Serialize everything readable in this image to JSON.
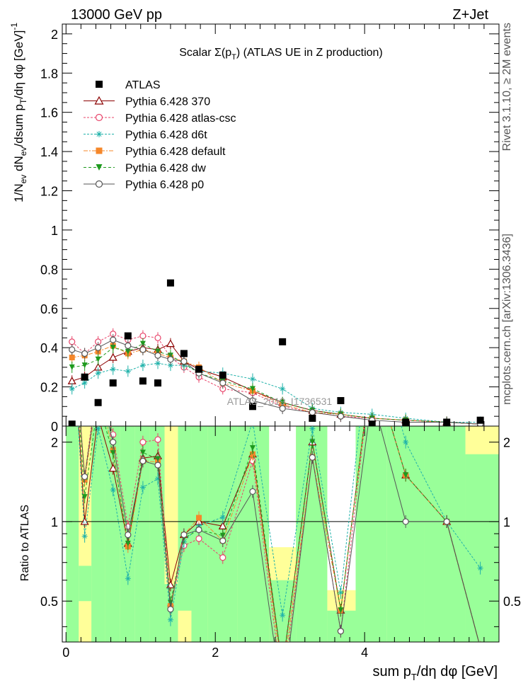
{
  "header": {
    "left": "13000 GeV pp",
    "right": "Z+Jet"
  },
  "side": {
    "rivet": "Rivet 3.1.10, ≥ 2M events",
    "mcplots": "mcplots.cern.ch [arXiv:1306.3436]"
  },
  "chart_data": {
    "type": "scatter",
    "title": "Scalar Σ(p_T) (ATLAS UE in Z production)",
    "xlabel": "sum p_T/dη dφ [GeV]",
    "ylabel": "1/N_ev dN_ev/dsum p_T/dη dφ [GeV]^-1",
    "ratio_ylabel": "Ratio to ATLAS",
    "watermark": "ATLAS_2019_I1736531",
    "xlim": [
      -0.05,
      5.8
    ],
    "ylim": [
      0,
      2.05
    ],
    "ratio_ylim": [
      0.35,
      2.3
    ],
    "x_ticks": [
      "0",
      "2",
      "4"
    ],
    "y_ticks": [
      "0",
      "0.2",
      "0.4",
      "0.6",
      "0.8",
      "1",
      "1.2",
      "1.4",
      "1.6",
      "1.8",
      "2"
    ],
    "ratio_ticks": [
      "0.5",
      "1",
      "2"
    ],
    "legend_position": "top-left",
    "x": [
      0.08,
      0.25,
      0.43,
      0.63,
      0.83,
      1.03,
      1.23,
      1.4,
      1.58,
      1.78,
      2.1,
      2.5,
      2.9,
      3.3,
      3.68,
      4.1,
      4.55,
      5.1,
      5.55
    ],
    "series": [
      {
        "name": "ATLAS",
        "color": "#000000",
        "marker": "filled-square",
        "values": [
          0.01,
          0.25,
          0.12,
          0.22,
          0.46,
          0.23,
          0.22,
          0.73,
          0.37,
          0.29,
          0.26,
          0.1,
          0.43,
          0.04,
          0.13,
          0.01,
          0.02,
          0.02,
          0.03
        ]
      },
      {
        "name": "Pythia 6.428 370",
        "color": "#8b0000",
        "marker": "open-triangle",
        "dash": "",
        "values": [
          0.23,
          0.25,
          0.3,
          0.35,
          0.38,
          0.4,
          0.39,
          0.42,
          0.33,
          0.29,
          0.25,
          0.18,
          0.12,
          0.08,
          0.06,
          0.04,
          0.03,
          0.02,
          0.01
        ]
      },
      {
        "name": "Pythia 6.428 atlas-csc",
        "color": "#e8446a",
        "marker": "open-circle",
        "dash": "3,2",
        "values": [
          0.43,
          0.37,
          0.43,
          0.47,
          0.44,
          0.46,
          0.45,
          0.35,
          0.3,
          0.25,
          0.19,
          0.17,
          0.1,
          0.07,
          0.05,
          0.04,
          0.03,
          0.02,
          0.01
        ]
      },
      {
        "name": "Pythia 6.428 d6t",
        "color": "#20b2aa",
        "marker": "star",
        "dash": "3,2",
        "values": [
          0.19,
          0.22,
          0.27,
          0.29,
          0.28,
          0.31,
          0.32,
          0.31,
          0.31,
          0.28,
          0.27,
          0.24,
          0.19,
          0.09,
          0.07,
          0.06,
          0.04,
          0.02,
          0.02
        ]
      },
      {
        "name": "Pythia 6.428 default",
        "color": "#f5872a",
        "marker": "filled-square",
        "dash": "6,2,2,2",
        "values": [
          0.35,
          0.36,
          0.38,
          0.41,
          0.37,
          0.39,
          0.37,
          0.35,
          0.33,
          0.3,
          0.22,
          0.18,
          0.11,
          0.07,
          0.06,
          0.04,
          0.03,
          0.02,
          0.01
        ]
      },
      {
        "name": "Pythia 6.428 dw",
        "color": "#1e9a1e",
        "marker": "filled-triangle-down",
        "dash": "4,3",
        "values": [
          0.3,
          0.31,
          0.34,
          0.4,
          0.38,
          0.42,
          0.38,
          0.36,
          0.32,
          0.27,
          0.23,
          0.19,
          0.12,
          0.08,
          0.06,
          0.04,
          0.03,
          0.02,
          0.01
        ]
      },
      {
        "name": "Pythia 6.428 p0",
        "color": "#555555",
        "marker": "open-circle",
        "dash": "",
        "values": [
          0.39,
          0.37,
          0.4,
          0.44,
          0.41,
          0.39,
          0.36,
          0.34,
          0.33,
          0.27,
          0.22,
          0.13,
          0.09,
          0.07,
          0.05,
          0.03,
          0.02,
          0.02,
          0.01
        ]
      }
    ],
    "ratio_band_edges": [
      0.0,
      0.17,
      0.34,
      0.52,
      0.72,
      0.92,
      1.12,
      1.32,
      1.5,
      1.68,
      1.9,
      2.3,
      2.72,
      3.08,
      3.5,
      3.88,
      4.3,
      4.8,
      5.35,
      5.8
    ],
    "ratio_bands": {
      "green": [
        [
          0.35,
          2.3
        ],
        [
          0.5,
          0.68
        ],
        [
          0.35,
          2.3
        ],
        [
          0.35,
          2.3
        ],
        [
          0.35,
          2.3
        ],
        [
          0.35,
          2.3
        ],
        [
          0.35,
          2.3
        ],
        [
          0.35,
          0.58
        ],
        [
          0.46,
          2.3
        ],
        [
          0.35,
          2.3
        ],
        [
          0.35,
          2.3
        ],
        [
          0.35,
          2.3
        ],
        [
          0.35,
          0.6
        ],
        [
          0.35,
          2.3
        ],
        [
          0.35,
          0.46
        ],
        [
          0.35,
          2.3
        ],
        [
          0.35,
          2.3
        ],
        [
          0.35,
          2.3
        ],
        [
          0.35,
          1.8
        ]
      ],
      "yellow": [
        [
          0.35,
          2.3
        ],
        [
          0.35,
          2.3
        ],
        [
          0.35,
          2.3
        ],
        [
          0.35,
          2.3
        ],
        [
          0.35,
          2.3
        ],
        [
          0.35,
          2.3
        ],
        [
          0.35,
          2.3
        ],
        [
          0.35,
          2.3
        ],
        [
          0.35,
          1.95
        ],
        [
          0.35,
          2.3
        ],
        [
          0.35,
          2.3
        ],
        [
          0.35,
          2.3
        ],
        [
          0.35,
          0.8
        ],
        [
          0.35,
          2.3
        ],
        [
          0.35,
          0.55
        ],
        [
          0.35,
          2.3
        ],
        [
          0.35,
          2.3
        ],
        [
          0.35,
          2.3
        ],
        [
          0.35,
          2.3
        ]
      ]
    }
  }
}
